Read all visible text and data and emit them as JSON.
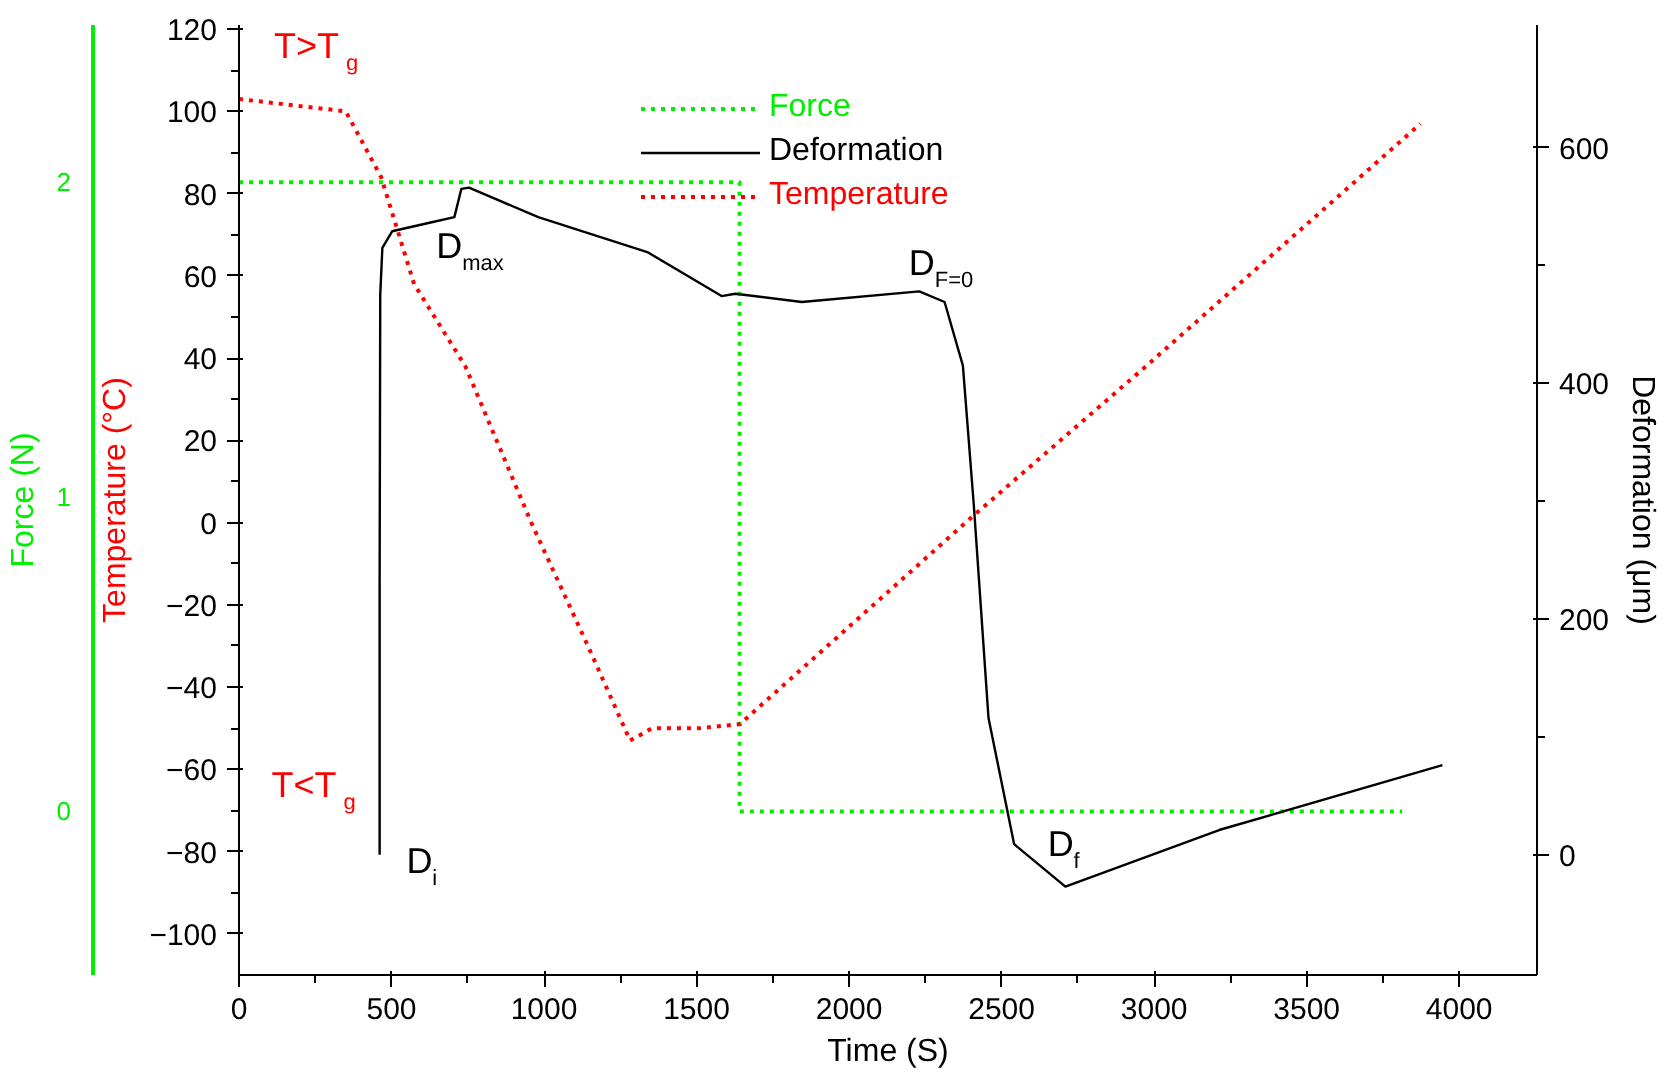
{
  "chart_data": {
    "type": "line",
    "xlabel": "Time (S)",
    "ylabel": "Temperature (°C)",
    "y2label": "Deformation (μm)",
    "y3label": "Force (N)",
    "xlim": [
      0,
      4255
    ],
    "xticks": [
      0,
      500,
      1000,
      1500,
      2000,
      2500,
      3000,
      3500,
      4000
    ],
    "ylim": [
      -110,
      121
    ],
    "yticks": [
      -100,
      -80,
      -60,
      -40,
      -20,
      0,
      20,
      40,
      60,
      80,
      100,
      120
    ],
    "y2lim": [
      -102,
      704
    ],
    "y2ticks": [
      0,
      200,
      400,
      600
    ],
    "y3lim": [
      -0.52,
      2.5
    ],
    "y3ticks": [
      0,
      1,
      2
    ],
    "grid": false,
    "legend": "top",
    "series": [
      {
        "name": "Force",
        "color": "#00ee00",
        "axis": "y3",
        "line_style": "dotted",
        "x": [
          0,
          1641,
          1641,
          3813
        ],
        "values": [
          2,
          2,
          0,
          0
        ]
      },
      {
        "name": "Deformation",
        "color": "#000000",
        "axis": "y2",
        "line_style": "solid",
        "x": [
          461,
          461,
          463,
          470,
          502,
          621,
          706,
          729,
          754,
          981,
          1341,
          1582,
          1627,
          1845,
          2230,
          2313,
          2373,
          2409,
          2457,
          2541,
          2709,
          3213,
          3945
        ],
        "values": [
          0,
          233,
          475,
          515,
          529,
          536,
          541,
          565,
          566,
          541,
          511,
          474,
          476,
          469,
          478,
          469,
          415,
          296,
          116,
          9,
          -27,
          21,
          76
        ]
      },
      {
        "name": "Temperature",
        "color": "#ff0000",
        "axis": "y",
        "line_style": "dotted",
        "x": [
          0,
          350,
          466,
          574,
          742,
          958,
          1150,
          1282,
          1354,
          1510,
          1642,
          2397,
          2973,
          3873
        ],
        "values": [
          103,
          100,
          84,
          58,
          38,
          0,
          -31,
          -53,
          -50,
          -50,
          -49,
          1,
          38,
          97
        ]
      }
    ],
    "annotations": [
      "T>T$_{g}$",
      "T<T$_{g}$",
      "D$_{max}$",
      "D$_{F=0}$",
      "D$_{i}$",
      "D$_{f}$"
    ]
  }
}
